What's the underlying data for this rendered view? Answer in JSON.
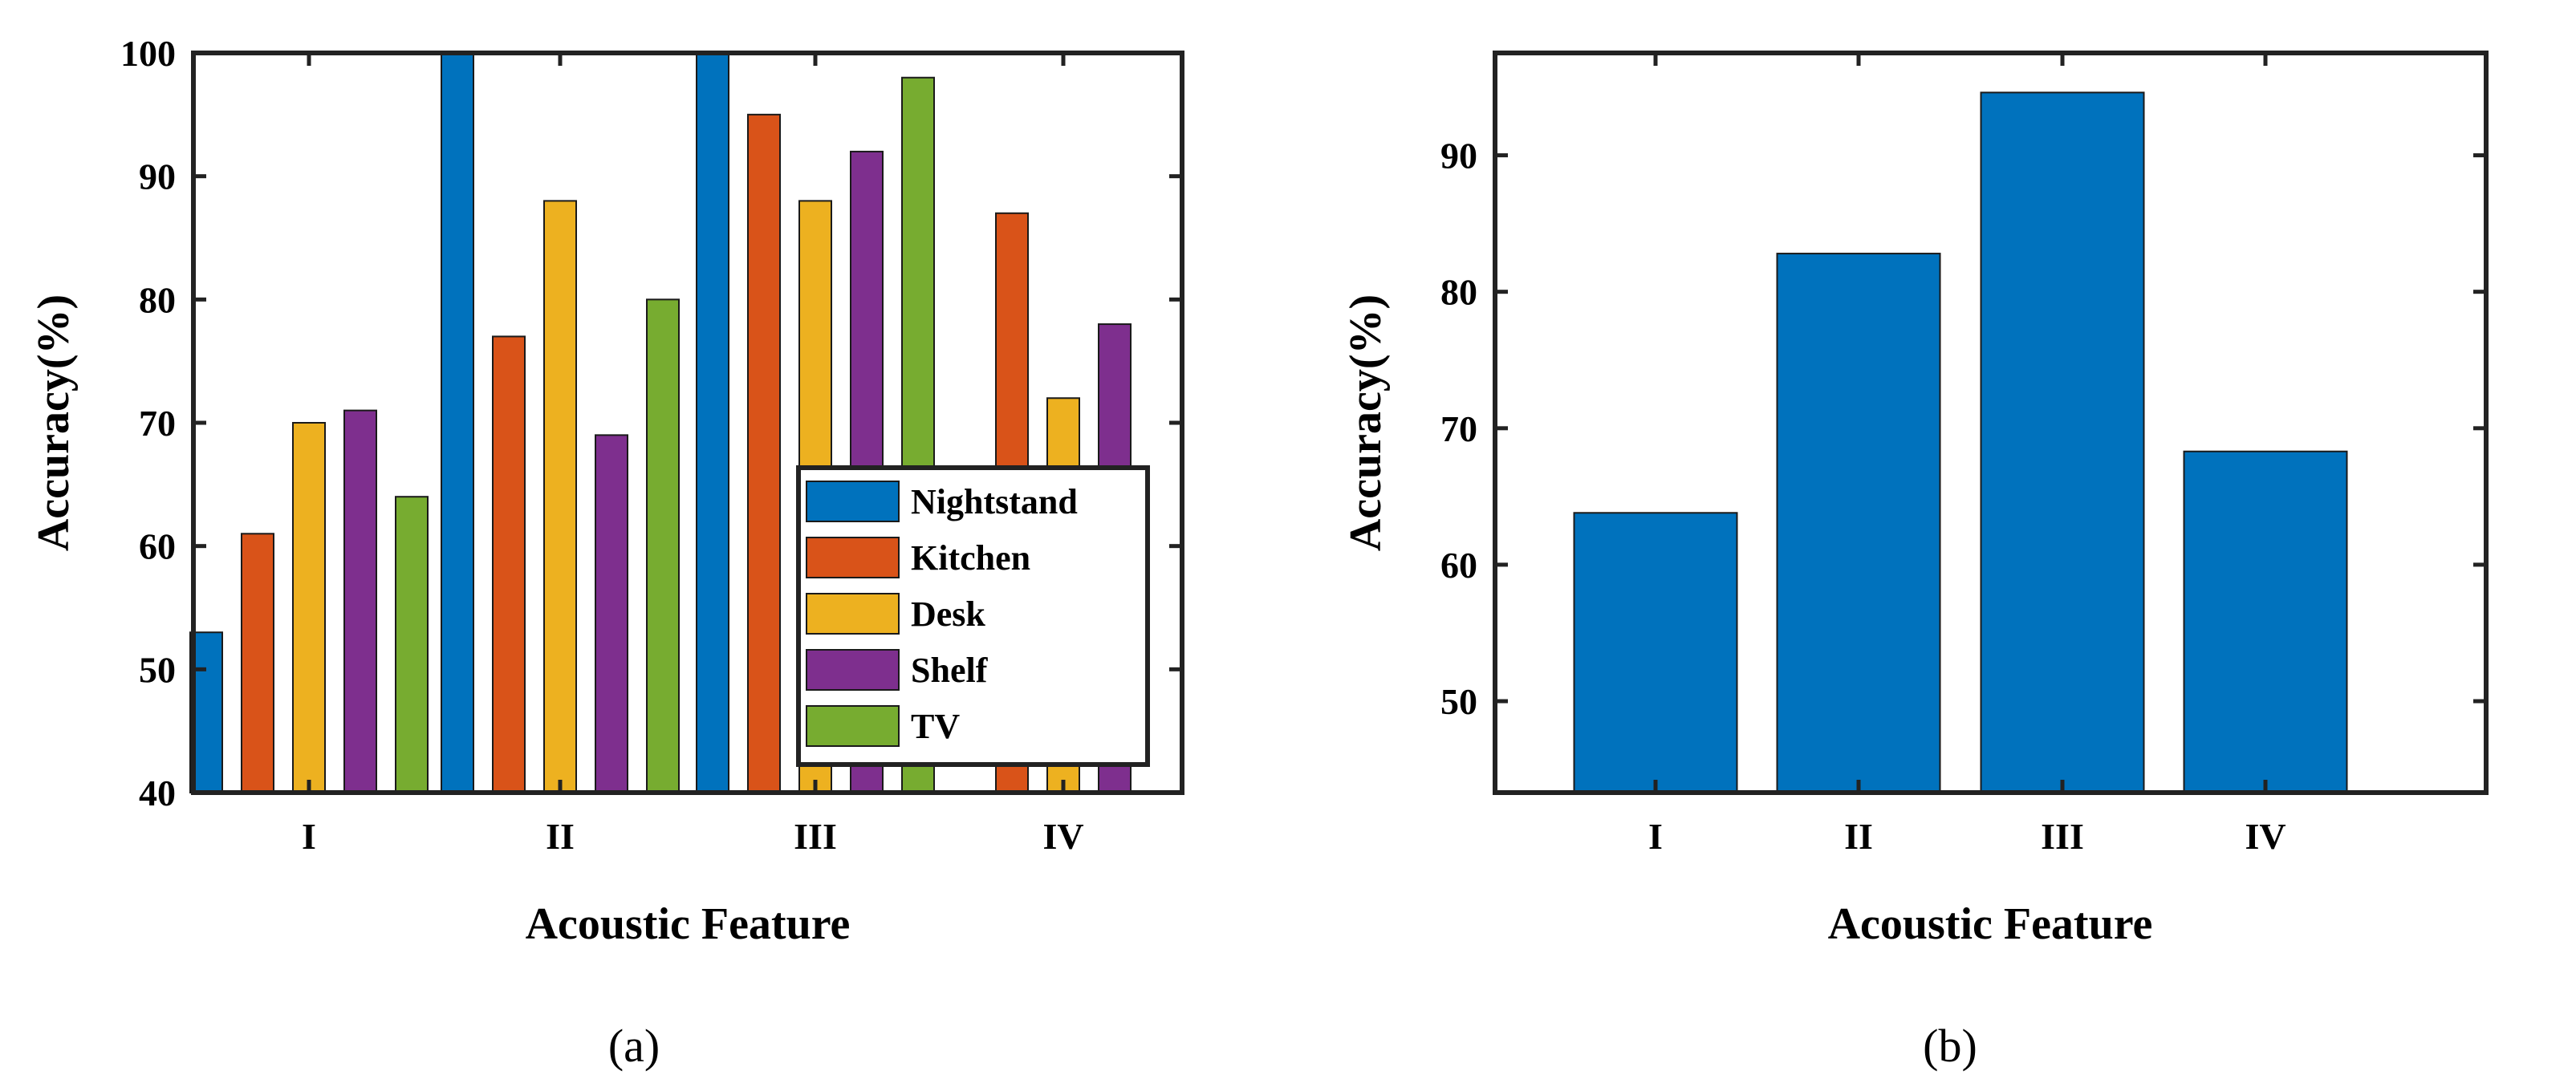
{
  "colors": {
    "Nightstand": "#0072BD",
    "Kitchen": "#D95319",
    "Desk": "#EDB120",
    "Shelf": "#7E2F8E",
    "TV": "#77AC30",
    "single": "#0072BD"
  },
  "chart_data": [
    {
      "type": "bar",
      "caption": "(a)",
      "categories": [
        "I",
        "II",
        "III",
        "IV"
      ],
      "series": [
        {
          "name": "Nightstand",
          "values": [
            53,
            100,
            100,
            40
          ]
        },
        {
          "name": "Kitchen",
          "values": [
            61,
            77,
            95,
            87
          ]
        },
        {
          "name": "Desk",
          "values": [
            70,
            88,
            88,
            72
          ]
        },
        {
          "name": "Shelf",
          "values": [
            71,
            69,
            92,
            78
          ]
        },
        {
          "name": "TV",
          "values": [
            64,
            80,
            98,
            40
          ]
        }
      ],
      "xlabel": "Acoustic Feature",
      "ylabel": "Accuracy(%)",
      "ylim": [
        40,
        100
      ],
      "yticks": [
        "40",
        "50",
        "60",
        "70",
        "80",
        "90",
        "100"
      ],
      "legend_position": "lower-right"
    },
    {
      "type": "bar",
      "caption": "(b)",
      "categories": [
        "I",
        "II",
        "III",
        "IV"
      ],
      "values": [
        63.8,
        82.8,
        94.6,
        68.3
      ],
      "xlabel": "Acoustic Feature",
      "ylabel": "Accuracy(%)",
      "ylim": [
        43.3,
        97.5
      ],
      "yticks": [
        "50",
        "60",
        "70",
        "80",
        "90"
      ]
    }
  ]
}
